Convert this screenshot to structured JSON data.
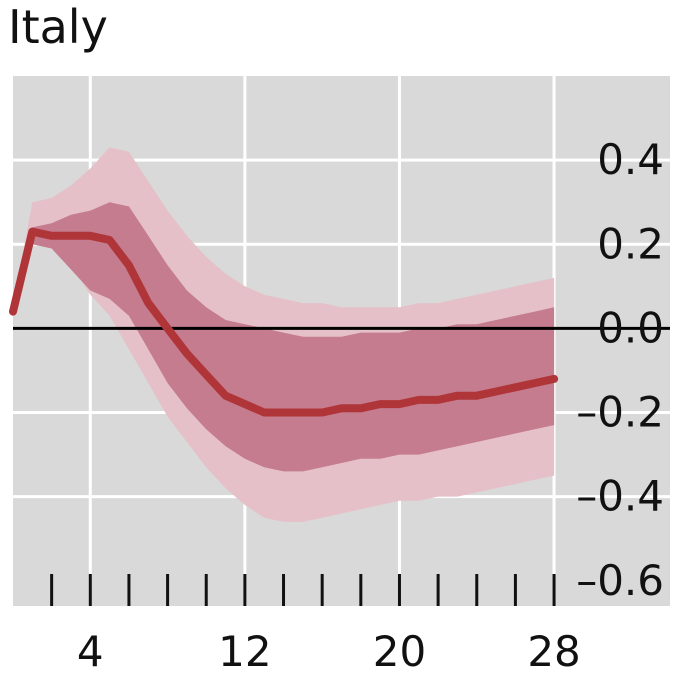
{
  "chart_data": {
    "type": "line",
    "title": "Italy",
    "xlabel": "",
    "ylabel": "",
    "xlim": [
      0,
      34
    ],
    "ylim": [
      -0.66,
      0.6
    ],
    "x_ticks": [
      4,
      12,
      20,
      28
    ],
    "x_tick_marks": [
      2,
      4,
      6,
      8,
      10,
      12,
      14,
      16,
      18,
      20,
      22,
      24,
      26,
      28
    ],
    "y_ticks": [
      0.4,
      0.2,
      0.0,
      -0.2,
      -0.4,
      -0.6
    ],
    "y_tick_labels": [
      "0.4",
      "0.2",
      "0.0",
      "–0.2",
      "–0.4",
      "–0.6"
    ],
    "x_gridlines": [
      4,
      12,
      20,
      28
    ],
    "y_gridlines": [
      0.4,
      0.2,
      0.0,
      -0.2,
      -0.4
    ],
    "zero_line": 0,
    "grid": true,
    "colors": {
      "background": "#d9d9d9",
      "grid": "#ffffff",
      "outer_band": "#e5c0c8",
      "inner_band": "#c47c8e",
      "line": "#b03538",
      "zero_line": "#000000"
    },
    "x": [
      0,
      1,
      2,
      3,
      4,
      5,
      6,
      7,
      8,
      9,
      10,
      11,
      12,
      13,
      14,
      15,
      16,
      17,
      18,
      19,
      20,
      21,
      22,
      23,
      24,
      25,
      26,
      27,
      28
    ],
    "series": [
      {
        "role": "outer_band",
        "lower": [
          0.04,
          0.23,
          0.21,
          0.15,
          0.08,
          0.03,
          -0.05,
          -0.13,
          -0.21,
          -0.27,
          -0.33,
          -0.38,
          -0.42,
          -0.45,
          -0.46,
          -0.46,
          -0.45,
          -0.44,
          -0.43,
          -0.42,
          -0.41,
          -0.41,
          -0.4,
          -0.4,
          -0.39,
          -0.38,
          -0.37,
          -0.36,
          -0.35
        ],
        "upper": [
          0.05,
          0.3,
          0.31,
          0.34,
          0.38,
          0.43,
          0.42,
          0.35,
          0.28,
          0.22,
          0.17,
          0.13,
          0.1,
          0.08,
          0.07,
          0.06,
          0.06,
          0.05,
          0.05,
          0.05,
          0.05,
          0.06,
          0.06,
          0.07,
          0.08,
          0.09,
          0.1,
          0.11,
          0.12
        ]
      },
      {
        "role": "inner_band",
        "lower": [
          0.04,
          0.2,
          0.19,
          0.14,
          0.09,
          0.07,
          0.03,
          -0.05,
          -0.13,
          -0.19,
          -0.24,
          -0.28,
          -0.31,
          -0.33,
          -0.34,
          -0.34,
          -0.33,
          -0.32,
          -0.31,
          -0.31,
          -0.3,
          -0.3,
          -0.29,
          -0.28,
          -0.27,
          -0.26,
          -0.25,
          -0.24,
          -0.23
        ],
        "upper": [
          0.04,
          0.24,
          0.25,
          0.27,
          0.28,
          0.3,
          0.29,
          0.22,
          0.15,
          0.09,
          0.05,
          0.02,
          0.01,
          0.0,
          -0.01,
          -0.02,
          -0.02,
          -0.02,
          -0.01,
          -0.01,
          -0.01,
          0.0,
          0.0,
          0.01,
          0.01,
          0.02,
          0.03,
          0.04,
          0.05
        ]
      },
      {
        "role": "median",
        "values": [
          0.04,
          0.23,
          0.22,
          0.22,
          0.22,
          0.21,
          0.15,
          0.06,
          0.0,
          -0.06,
          -0.11,
          -0.16,
          -0.18,
          -0.2,
          -0.2,
          -0.2,
          -0.2,
          -0.19,
          -0.19,
          -0.18,
          -0.18,
          -0.17,
          -0.17,
          -0.16,
          -0.16,
          -0.15,
          -0.14,
          -0.13,
          -0.12
        ]
      }
    ]
  }
}
